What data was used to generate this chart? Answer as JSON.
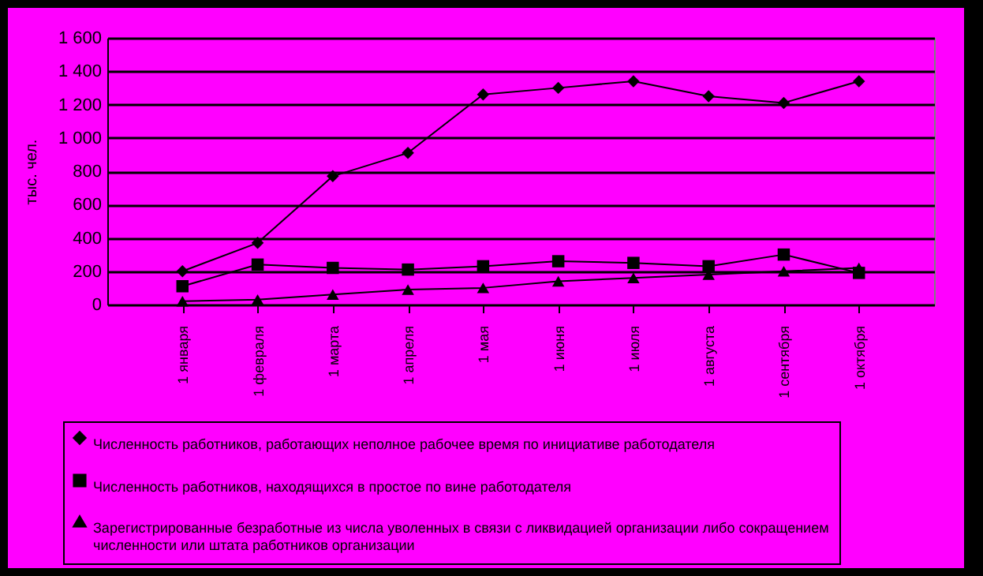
{
  "chart_data": {
    "type": "line",
    "ylabel": "тыс. чел.",
    "categories": [
      "1 января",
      "1 февраля",
      "1 марта",
      "1 апреля",
      "1 мая",
      "1 июня",
      "1 июля",
      "1 августа",
      "1 сентября",
      "1 октября"
    ],
    "series": [
      {
        "name": "Численность работников, работающих неполное рабочее время по инициативе работодателя",
        "color": "#000000",
        "marker": "diamond",
        "values": [
          200,
          370,
          770,
          910,
          1260,
          1300,
          1340,
          1250,
          1210,
          1340
        ]
      },
      {
        "name": "Численность работников, находящихся в простое по вине работодателя",
        "color": "#000000",
        "marker": "square",
        "values": [
          110,
          240,
          220,
          210,
          230,
          260,
          250,
          230,
          300,
          190
        ]
      },
      {
        "name": "Зарегистрированные безработные из числа уволенных в связи с ликвидацией организации либо сокращением численности или штата работников организации",
        "color": "#000000",
        "marker": "triangle",
        "values": [
          20,
          30,
          60,
          90,
          100,
          140,
          160,
          180,
          200,
          220
        ]
      }
    ],
    "ylim": [
      0,
      1600
    ],
    "yticks": [
      0,
      {
        "value": 200,
        "label": "200"
      },
      {
        "value": 400,
        "label": "400"
      },
      {
        "value": 600,
        "label": "600"
      },
      {
        "value": 800,
        "label": "800"
      },
      {
        "value": 1000,
        "label": "1 000"
      },
      {
        "value": 1200,
        "label": "1 200"
      },
      {
        "value": 1400,
        "label": "1 400"
      },
      {
        "value": 1600,
        "label": "1 600"
      }
    ],
    "grid": "y",
    "legend": "bottom",
    "line_style": "solid"
  }
}
